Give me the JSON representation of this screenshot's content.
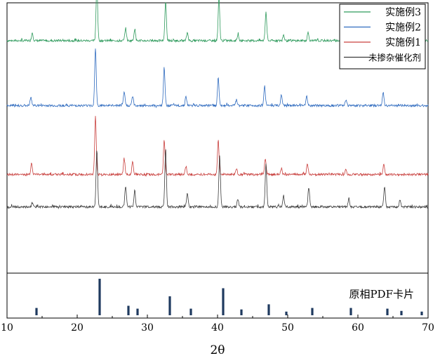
{
  "chart_data": {
    "type": "line",
    "xlabel": "2θ",
    "ylabel": "",
    "xlim": [
      10,
      70
    ],
    "xticks": [
      "10",
      "20",
      "30",
      "40",
      "50",
      "60",
      "70"
    ],
    "grid": false,
    "legend_position": "top-right",
    "series": [
      {
        "name": "实施例3",
        "color": "#2e9a5c",
        "baseline": 0.86,
        "scale": 1.0,
        "peaks": [
          [
            13.6,
            0.14
          ],
          [
            22.8,
            1.0
          ],
          [
            26.9,
            0.22
          ],
          [
            28.2,
            0.2
          ],
          [
            32.6,
            0.68
          ],
          [
            35.7,
            0.14
          ],
          [
            40.2,
            0.74
          ],
          [
            42.9,
            0.1
          ],
          [
            46.9,
            0.5
          ],
          [
            49.4,
            0.1
          ],
          [
            52.9,
            0.14
          ],
          [
            58.6,
            0.1
          ],
          [
            63.8,
            0.12
          ]
        ]
      },
      {
        "name": "实施例2",
        "color": "#2f6bbf",
        "baseline": 0.62,
        "scale": 1.0,
        "peaks": [
          [
            13.4,
            0.14
          ],
          [
            22.6,
            1.0
          ],
          [
            26.7,
            0.24
          ],
          [
            27.9,
            0.16
          ],
          [
            32.4,
            0.66
          ],
          [
            35.5,
            0.16
          ],
          [
            40.1,
            0.48
          ],
          [
            42.7,
            0.1
          ],
          [
            46.7,
            0.34
          ],
          [
            49.1,
            0.18
          ],
          [
            52.7,
            0.16
          ],
          [
            58.3,
            0.1
          ],
          [
            63.6,
            0.24
          ]
        ]
      },
      {
        "name": "实施例1",
        "color": "#c9403e",
        "baseline": 0.365,
        "scale": 1.0,
        "peaks": [
          [
            13.5,
            0.2
          ],
          [
            22.6,
            1.0
          ],
          [
            26.7,
            0.28
          ],
          [
            27.9,
            0.22
          ],
          [
            32.4,
            0.6
          ],
          [
            35.5,
            0.14
          ],
          [
            40.1,
            0.6
          ],
          [
            42.7,
            0.1
          ],
          [
            46.8,
            0.28
          ],
          [
            49.1,
            0.1
          ],
          [
            52.8,
            0.18
          ],
          [
            58.3,
            0.1
          ],
          [
            63.7,
            0.18
          ]
        ]
      },
      {
        "name": "未掺杂催化剂",
        "color": "#3c3c3c",
        "baseline": 0.245,
        "scale": 1.0,
        "peaks": [
          [
            13.6,
            0.08
          ],
          [
            22.8,
            1.0
          ],
          [
            26.9,
            0.36
          ],
          [
            28.2,
            0.28
          ],
          [
            32.6,
            1.0
          ],
          [
            35.7,
            0.24
          ],
          [
            40.3,
            0.9
          ],
          [
            42.9,
            0.14
          ],
          [
            46.9,
            0.74
          ],
          [
            49.4,
            0.2
          ],
          [
            53.0,
            0.34
          ],
          [
            58.7,
            0.14
          ],
          [
            63.8,
            0.34
          ],
          [
            66.0,
            0.12
          ]
        ]
      }
    ],
    "reference": {
      "name": "原相PDF卡片",
      "color": "#1f3a5f",
      "lines": [
        [
          14.2,
          0.2
        ],
        [
          23.2,
          1.0
        ],
        [
          27.3,
          0.26
        ],
        [
          28.6,
          0.18
        ],
        [
          33.2,
          0.52
        ],
        [
          36.2,
          0.18
        ],
        [
          40.8,
          0.74
        ],
        [
          43.4,
          0.16
        ],
        [
          47.3,
          0.3
        ],
        [
          49.8,
          0.1
        ],
        [
          53.5,
          0.2
        ],
        [
          59.0,
          0.2
        ],
        [
          64.2,
          0.18
        ],
        [
          66.2,
          0.12
        ],
        [
          69.1,
          0.1
        ]
      ]
    }
  }
}
